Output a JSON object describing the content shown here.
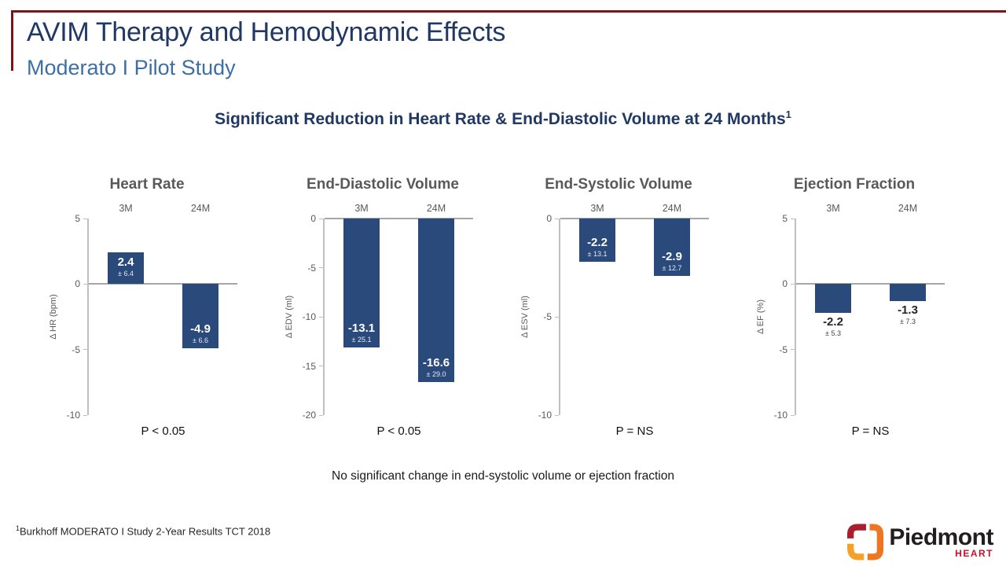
{
  "slide": {
    "title": "AVIM Therapy and Hemodynamic Effects",
    "subtitle": "Moderato I Pilot Study",
    "heading": "Significant Reduction in Heart Rate & End-Diastolic Volume at 24 Months",
    "heading_superscript": "1",
    "note": "No significant change in end-systolic volume or ejection fraction",
    "footnote_superscript": "1",
    "footnote": "Burkhoff MODERATO I Study 2-Year Results TCT 2018"
  },
  "colors": {
    "bar": "#2A4A7B",
    "title_navy": "#1F3864",
    "subtitle_blue": "#3D6FA5",
    "accent_rule": "#7E1416",
    "gray_text": "#595959",
    "axis_gray": "#BFBFBF",
    "zero_line_gray": "#A6A6A6"
  },
  "chart_data": [
    {
      "type": "bar",
      "title": "Heart Rate",
      "categories": [
        "3M",
        "24M"
      ],
      "values": [
        2.4,
        -4.9
      ],
      "errors": [
        "± 6.4",
        "± 6.6"
      ],
      "ylabel": "Δ HR (bpm)",
      "ylim": [
        -10,
        5
      ],
      "yticks": [
        5,
        0,
        -5,
        -10
      ],
      "p_label": "P < 0.05",
      "value_label_position": "inside",
      "legend": "none",
      "grid": "off"
    },
    {
      "type": "bar",
      "title": "End-Diastolic Volume",
      "categories": [
        "3M",
        "24M"
      ],
      "values": [
        -13.1,
        -16.6
      ],
      "errors": [
        "± 25.1",
        "± 29.0"
      ],
      "ylabel": "Δ EDV (ml)",
      "ylim": [
        -20,
        0
      ],
      "yticks": [
        0,
        -5,
        -10,
        -15,
        -20
      ],
      "p_label": "P < 0.05",
      "value_label_position": "inside",
      "legend": "none",
      "grid": "off"
    },
    {
      "type": "bar",
      "title": "End-Systolic Volume",
      "categories": [
        "3M",
        "24M"
      ],
      "values": [
        -2.2,
        -2.9
      ],
      "errors": [
        "± 13.1",
        "± 12.7"
      ],
      "ylabel": "Δ ESV (ml)",
      "ylim": [
        -10,
        0
      ],
      "yticks": [
        0,
        -5,
        -10
      ],
      "p_label": "P = NS",
      "value_label_position": "inside",
      "legend": "none",
      "grid": "off"
    },
    {
      "type": "bar",
      "title": "Ejection Fraction",
      "categories": [
        "3M",
        "24M"
      ],
      "values": [
        -2.2,
        -1.3
      ],
      "errors": [
        "± 5.3",
        "± 7.3"
      ],
      "ylabel": "Δ EF (%)",
      "ylim": [
        -10,
        5
      ],
      "yticks": [
        5,
        0,
        -5,
        -10
      ],
      "p_label": "P = NS",
      "value_label_position": "outside",
      "legend": "none",
      "grid": "off"
    }
  ],
  "logo": {
    "name": "Piedmont",
    "sub": "HEART",
    "colors": {
      "segment_red": "#A91F2E",
      "segment_amber": "#F4A129",
      "segment_orange": "#ED7623",
      "name_text": "#221E1F",
      "heart_text": "#C8102E"
    }
  }
}
